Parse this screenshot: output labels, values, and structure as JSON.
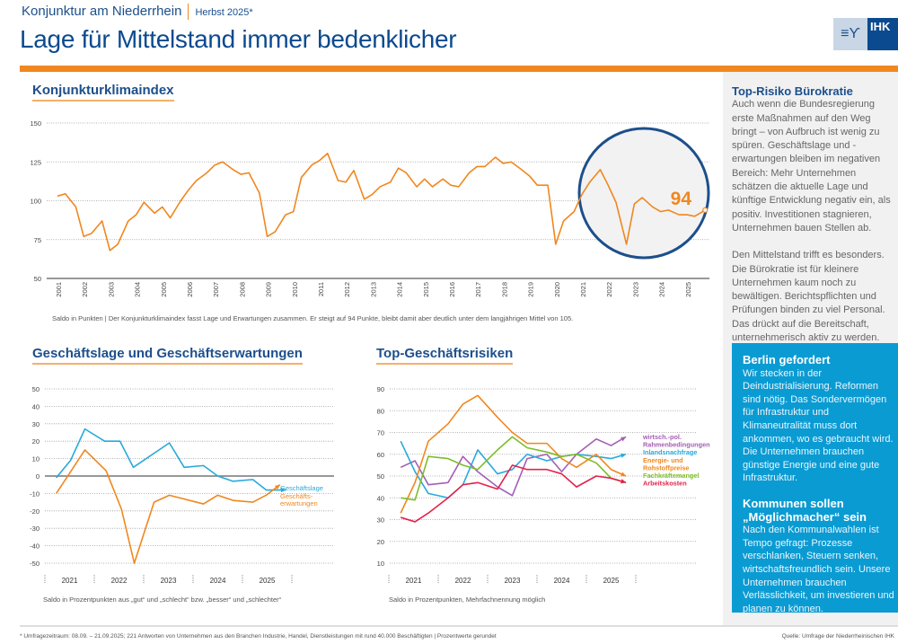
{
  "header": {
    "series": "Konjunktur am Niederrhein",
    "season": "Herbst 2025*",
    "title": "Lage für Mittelstand immer bedenklicher",
    "logo_text": "IHK"
  },
  "colors": {
    "brand_blue": "#0b4a8f",
    "orange": "#f0871f",
    "cyan": "#0b9bd3"
  },
  "sidebar": {
    "box1": {
      "title": "Top-Risiko Bürokratie",
      "p1": "Auch wenn die Bundesregierung erste Maßnahmen auf den Weg bringt – von Aufbruch ist wenig zu spüren. Geschäftslage und -erwartungen bleiben im negativen Bereich: Mehr Unternehmen schätzen die aktuelle Lage und künftige Entwicklung negativ ein, als positiv. Investitionen stagnieren, Unternehmen bauen Stellen ab.",
      "p2": "Den Mittelstand trifft es besonders. Die Bürokratie ist für kleinere Unternehmen kaum noch zu bewältigen. Berichtspflichten und Prüfungen binden zu viel Personal. Das drückt auf die Bereitschaft, unternehmerisch aktiv zu werden."
    },
    "box2": {
      "title1": "Berlin gefordert",
      "p1": "Wir stecken in der Deindustrialisierung. Reformen sind nötig. Das Sondervermögen für Infrastruktur und Klimaneutralität muss dort ankommen, wo es gebraucht wird. Die Unternehmen brauchen günstige Energie und eine gute Infrastruktur.",
      "title2": "Kommunen sollen „Möglichmacher“ sein",
      "p2": "Nach den Kommunalwahlen ist Tempo gefragt: Prozesse verschlanken, Steuern senken, wirtschaftsfreundlich sein. Unsere Unternehmen brauchen Verlässlichkeit, um investieren und planen zu können."
    }
  },
  "footer": {
    "note": "* Umfragezeitraum: 08.09. – 21.09.2025; 221 Antworten von Unternehmen aus den Branchen Industrie, Handel, Dienstleistungen mit rund 40.000 Beschäftigten  |  Prozentwerte gerundet",
    "source": "Quelle: Umfrage der Niederrheinischen IHK"
  },
  "chart_data": [
    {
      "type": "line",
      "title": "Konjunkturklimaindex",
      "caption": "Saldo in Punkten | Der Konjunkturklimaindex fasst Lage und Erwartungen zusammen. Er steigt auf 94 Punkte, bleibt damit aber deutlich unter dem langjährigen Mittel von 105.",
      "ylim": [
        50,
        150
      ],
      "yticks": [
        50,
        75,
        100,
        125,
        150
      ],
      "xlim": [
        2000.8,
        2026
      ],
      "xticks": [
        "2001",
        "2002",
        "2003",
        "2004",
        "2005",
        "2006",
        "2007",
        "2008",
        "2009",
        "2010",
        "2011",
        "2012",
        "2013",
        "2014",
        "2015",
        "2016",
        "2017",
        "2018",
        "2019",
        "2020",
        "2021",
        "2022",
        "2023",
        "2024",
        "2025"
      ],
      "highlight_value": "94",
      "grid": true,
      "x": [
        2001.0,
        2001.3,
        2001.7,
        2002.0,
        2002.3,
        2002.7,
        2003.0,
        2003.3,
        2003.7,
        2004.0,
        2004.3,
        2004.7,
        2005.0,
        2005.3,
        2005.7,
        2006.0,
        2006.3,
        2006.7,
        2007.0,
        2007.3,
        2007.7,
        2008.0,
        2008.3,
        2008.7,
        2009.0,
        2009.3,
        2009.7,
        2010.0,
        2010.3,
        2010.7,
        2011.0,
        2011.3,
        2011.7,
        2012.0,
        2012.3,
        2012.7,
        2013.0,
        2013.3,
        2013.7,
        2014.0,
        2014.3,
        2014.7,
        2015.0,
        2015.3,
        2015.7,
        2016.0,
        2016.3,
        2016.7,
        2017.0,
        2017.3,
        2017.7,
        2018.0,
        2018.3,
        2018.7,
        2019.0,
        2019.3,
        2019.7,
        2020.0,
        2020.3,
        2020.7,
        2021.0,
        2021.3,
        2021.7,
        2022.0,
        2022.3,
        2022.7,
        2023.0,
        2023.3,
        2023.7,
        2024.0,
        2024.3,
        2024.7,
        2025.0,
        2025.3,
        2025.7
      ],
      "values": [
        103,
        104.5,
        96,
        77,
        79,
        87,
        68,
        72,
        87,
        91,
        99,
        92,
        96,
        89,
        100,
        107,
        113,
        118,
        123,
        125,
        120,
        117,
        118,
        105,
        77,
        80,
        91,
        93,
        115,
        123,
        126,
        130.5,
        113,
        112,
        119.5,
        101,
        104,
        109,
        112,
        121,
        118,
        109,
        114,
        109,
        114,
        110,
        109,
        118,
        122,
        122,
        128,
        124,
        125,
        120,
        116,
        110,
        110,
        72,
        87,
        93,
        104,
        112,
        120,
        110,
        99,
        72,
        98,
        102,
        96,
        93,
        94,
        91,
        91,
        90,
        94
      ]
    },
    {
      "type": "line",
      "title": "Geschäftslage und Geschäftserwartungen",
      "caption": "Saldo in Prozentpunkten aus „gut“ und „schlecht“ bzw. „besser“ und „schlechter“",
      "ylim": [
        -50,
        50
      ],
      "yticks": [
        50,
        40,
        30,
        20,
        10,
        0,
        -10,
        -20,
        -30,
        -40,
        -50
      ],
      "xlim": [
        2021,
        2026
      ],
      "xticks": [
        "2021",
        "2022",
        "2023",
        "2024",
        "2025"
      ],
      "series": [
        {
          "name": "Geschäftslage",
          "color": "#29a9dc",
          "x": [
            2021.23,
            2021.52,
            2021.81,
            2022.21,
            2022.52,
            2022.79,
            2023.52,
            2023.82,
            2024.21,
            2024.5,
            2024.81,
            2025.21,
            2025.48,
            2025.88
          ],
          "values": [
            -1,
            9,
            27,
            20,
            20,
            5,
            19,
            5,
            6,
            0,
            -3,
            -2,
            -8,
            -8
          ]
        },
        {
          "name": "Geschäftserwartungen",
          "label_lines": [
            "Geschäfts-",
            "erwartungen"
          ],
          "color": "#f0871f",
          "x": [
            2021.23,
            2021.81,
            2022.24,
            2022.55,
            2022.81,
            2023.21,
            2023.52,
            2024.21,
            2024.5,
            2024.81,
            2025.21,
            2025.48,
            2025.76
          ],
          "values": [
            -10,
            15,
            3,
            -19,
            -50,
            -15,
            -11,
            -16,
            -11,
            -14,
            -15,
            -11,
            -5
          ]
        }
      ]
    },
    {
      "type": "line",
      "title": "Top-Geschäftsrisiken",
      "caption": "Saldo in Prozentpunkten, Mehrfachnennung möglich",
      "ylim": [
        10,
        90
      ],
      "yticks": [
        90,
        80,
        70,
        60,
        50,
        40,
        30,
        20,
        10
      ],
      "xlim": [
        2021,
        2026
      ],
      "xticks": [
        "2021",
        "2022",
        "2023",
        "2024",
        "2025"
      ],
      "x": [
        2021.24,
        2021.53,
        2021.8,
        2022.2,
        2022.5,
        2022.8,
        2023.2,
        2023.5,
        2023.8,
        2024.2,
        2024.5,
        2024.8,
        2025.2,
        2025.5,
        2025.8
      ],
      "series": [
        {
          "name": "wirtsch.-pol. Rahmenbedingungen",
          "label_lines": [
            "wirtsch.-pol.",
            "Rahmenbedingungen"
          ],
          "color": "#a45fb4",
          "values": [
            54,
            57,
            46,
            47,
            59,
            52,
            45,
            41,
            58,
            60,
            52,
            60,
            67,
            64,
            68
          ]
        },
        {
          "name": "Inlandsnachfrage",
          "label_lines": [
            "Inlandsnachfrage"
          ],
          "color": "#29a9dc",
          "values": [
            66,
            52,
            42,
            40,
            46,
            62,
            51,
            53,
            60,
            57,
            59,
            60,
            59,
            58,
            60
          ]
        },
        {
          "name": "Energie- und Rohstoffpreise",
          "label_lines": [
            "Energie- und",
            "Rohstoffpreise"
          ],
          "color": "#f0871f",
          "values": [
            33,
            47,
            66,
            74,
            83,
            87,
            77,
            70,
            65,
            65,
            58,
            54,
            60,
            53,
            50
          ]
        },
        {
          "name": "Fachkräftemangel",
          "label_lines": [
            "Fachkräftemangel"
          ],
          "color": "#7cbd2a",
          "values": [
            40,
            39,
            59,
            58,
            55,
            53,
            62,
            68,
            63,
            61,
            59,
            60,
            56,
            49,
            47
          ]
        },
        {
          "name": "Arbeitskosten",
          "label_lines": [
            "Arbeitskosten"
          ],
          "color": "#e3224c",
          "values": [
            31,
            29,
            33,
            40,
            46,
            47,
            44,
            55,
            53,
            53,
            51,
            45,
            50,
            49,
            47
          ]
        }
      ]
    }
  ]
}
